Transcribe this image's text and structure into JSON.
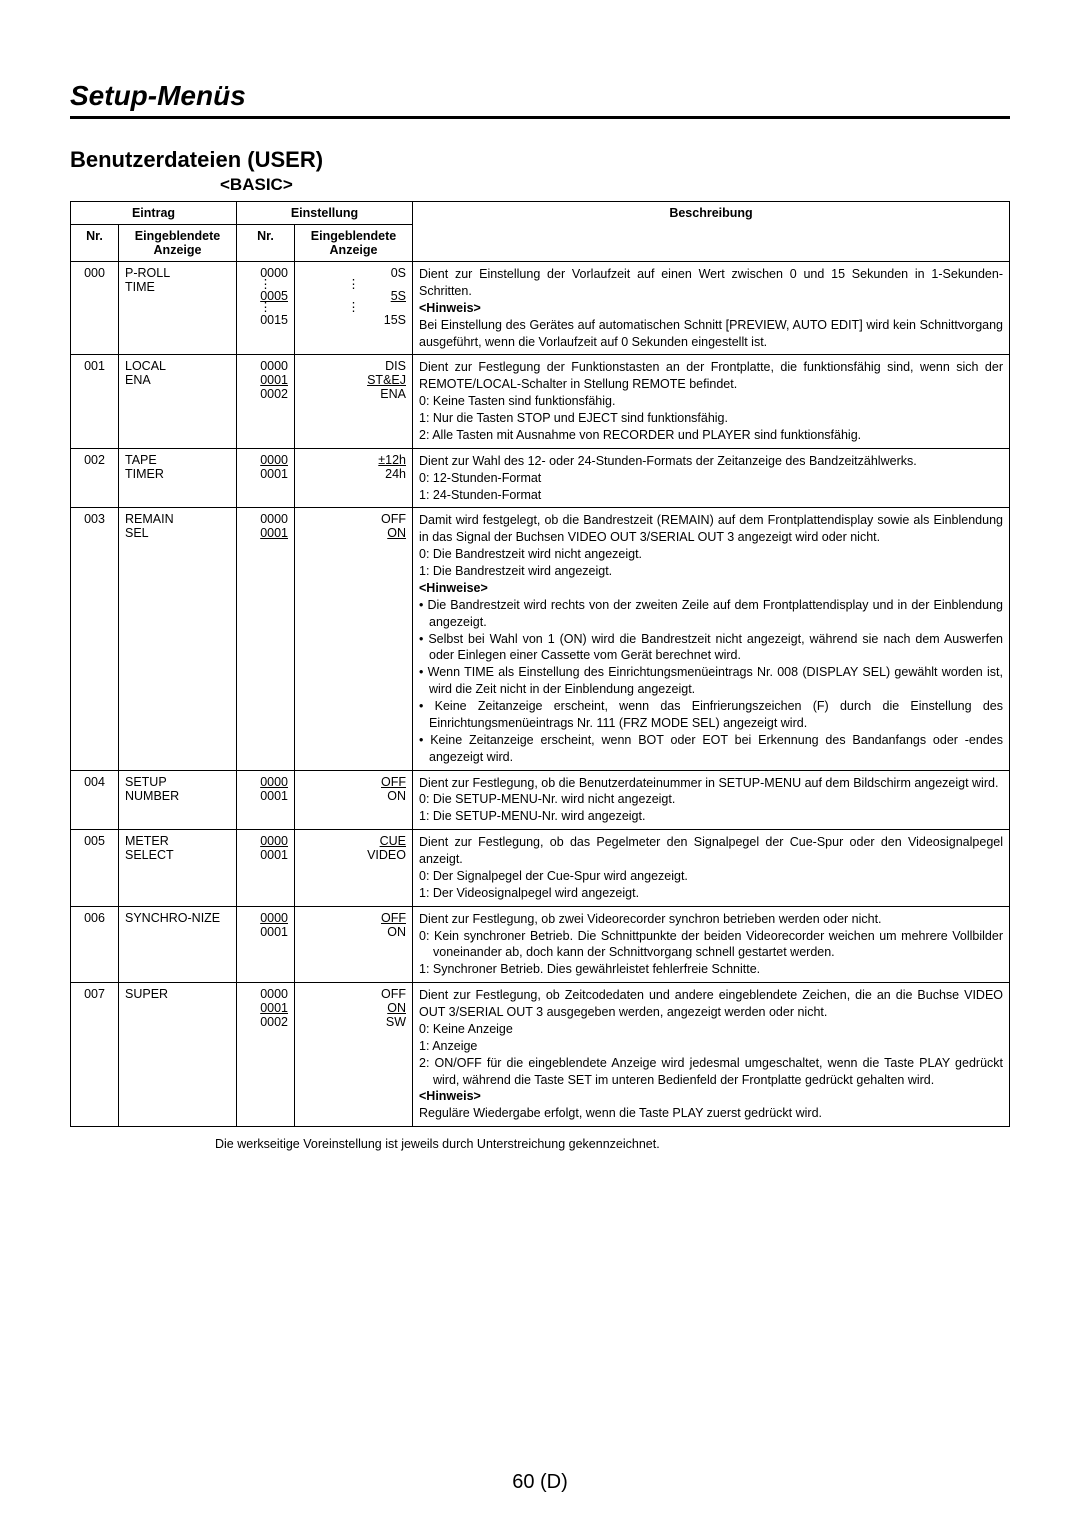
{
  "pageTitle": "Setup-Menüs",
  "sectionTitle": "Benutzerdateien (USER)",
  "subsectionTitle": "<BASIC>",
  "headers": {
    "entry": "Eintrag",
    "setting": "Einstellung",
    "nr": "Nr.",
    "display": "Eingeblendete Anzeige",
    "desc": "Beschreibung"
  },
  "rows": [
    {
      "nr": "000",
      "display1": "P-ROLL TIME",
      "nr2_html": "0000<br><span class='vdots'>⋮</span><span class='u'>0005</span><br><span class='vdots'>⋮</span>0015",
      "display2_html": "0S<br><span class='vdots'>⋮</span><span class='u'>5S</span><br><span class='vdots'>⋮</span>15S",
      "desc_html": "Dient zur Einstellung der Vorlaufzeit auf einen Wert zwischen 0 und 15 Sekunden in 1-Sekunden-Schritten.<br><span class='note-title'>&lt;Hinweis&gt;</span><br>Bei Einstellung des Gerätes auf automatischen Schnitt [PREVIEW, AUTO EDIT] wird kein Schnittvorgang ausgeführt, wenn die Vorlaufzeit auf 0 Sekunden eingestellt ist."
    },
    {
      "nr": "001",
      "display1": "LOCAL ENA",
      "nr2_html": "0000<br><span class='u'>0001</span><br>0002",
      "display2_html": "DIS<br><span class='u'>ST&amp;EJ</span><br>ENA",
      "desc_html": "Dient zur Festlegung der Funktionstasten an der Frontplatte, die funktionsfähig sind, wenn sich der REMOTE/LOCAL-Schalter in Stellung REMOTE befindet.<br><span class='indent'>0: Keine Tasten sind funktionsfähig.</span><span class='indent'>1: Nur die Tasten STOP und EJECT sind funktionsfähig.</span><span class='indent'>2: Alle Tasten mit Ausnahme von RECORDER und PLAYER sind funktionsfähig.</span>"
    },
    {
      "nr": "002",
      "display1": "TAPE TIMER",
      "nr2_html": "<span class='u'>0000</span><br>0001",
      "display2_html": "<span class='u'>±12h</span><br>24h",
      "desc_html": "Dient zur Wahl des 12- oder 24-Stunden-Formats der Zeitanzeige des Bandzeitzählwerks.<br><span class='indent'>0: 12-Stunden-Format</span><span class='indent'>1: 24-Stunden-Format</span>"
    },
    {
      "nr": "003",
      "display1": "REMAIN SEL",
      "nr2_html": "0000<br><span class='u'>0001</span>",
      "display2_html": "OFF<br><span class='u'>ON</span>",
      "desc_html": "Damit wird festgelegt, ob die Bandrestzeit (REMAIN) auf dem Frontplattendisplay sowie als Einblendung in das Signal der Buchsen VIDEO OUT 3/SERIAL OUT 3 angezeigt wird oder nicht.<br><span class='indent'>0: Die Bandrestzeit wird nicht angezeigt.</span><span class='indent'>1: Die Bandrestzeit wird angezeigt.</span><span class='note-title'>&lt;Hinweise&gt;</span><br><span class='bullet'>• Die Bandrestzeit wird rechts von der zweiten Zeile auf dem Frontplattendisplay und in der Einblendung angezeigt.</span><span class='bullet'>• Selbst bei Wahl von 1 (ON) wird die Bandrestzeit nicht angezeigt, während sie nach dem Auswerfen oder Einlegen einer Cassette vom Gerät berechnet wird.</span><span class='bullet'>• Wenn TIME als Einstellung des Einrichtungsmenüeintrags Nr. 008 (DISPLAY SEL) gewählt worden ist, wird die Zeit nicht in der Einblendung angezeigt.</span><span class='bullet'>• Keine Zeitanzeige erscheint, wenn das Einfrierungszeichen (F) durch die Einstellung des Einrichtungsmenüeintrags Nr. 111 (FRZ MODE SEL) angezeigt wird.</span><span class='bullet'>• Keine Zeitanzeige erscheint, wenn BOT oder EOT bei Erkennung des Bandanfangs oder -endes angezeigt wird.</span>"
    },
    {
      "nr": "004",
      "display1": "SETUP NUMBER",
      "nr2_html": "<span class='u'>0000</span><br>0001",
      "display2_html": "<span class='u'>OFF</span><br>ON",
      "desc_html": "Dient zur Festlegung, ob die Benutzerdateinummer in SETUP-MENU auf dem Bildschirm angezeigt wird.<br><span class='indent'>0: Die SETUP-MENU-Nr. wird nicht angezeigt.</span><span class='indent'>1: Die SETUP-MENU-Nr. wird angezeigt.</span>"
    },
    {
      "nr": "005",
      "display1": "METER SELECT",
      "nr2_html": "<span class='u'>0000</span><br>0001",
      "display2_html": "<span class='u'>CUE</span><br>VIDEO",
      "desc_html": "Dient zur Festlegung, ob das Pegelmeter den Signalpegel der Cue-Spur oder den Videosignalpegel anzeigt.<br><span class='indent'>0: Der Signalpegel der Cue-Spur wird angezeigt.</span><span class='indent'>1: Der Videosignalpegel wird angezeigt.</span>"
    },
    {
      "nr": "006",
      "display1": "SYNCHRO-NIZE",
      "nr2_html": "<span class='u'>0000</span><br>0001",
      "display2_html": "<span class='u'>OFF</span><br>ON",
      "desc_html": "Dient zur Festlegung, ob zwei Videorecorder synchron betrieben werden oder nicht.<br><span class='indent'>0: Kein synchroner Betrieb. Die Schnittpunkte der beiden Videorecorder weichen um mehrere Vollbilder voneinander ab, doch kann der Schnittvorgang schnell gestartet werden.</span><span class='indent'>1: Synchroner Betrieb. Dies gewährleistet fehlerfreie Schnitte.</span>"
    },
    {
      "nr": "007",
      "display1": "SUPER",
      "nr2_html": "0000<br><span class='u'>0001</span><br>0002",
      "display2_html": "OFF<br><span class='u'>ON</span><br>SW",
      "desc_html": "Dient zur Festlegung, ob Zeitcodedaten und andere eingeblendete Zeichen, die an die Buchse VIDEO OUT 3/SERIAL OUT 3 ausgegeben werden, angezeigt werden oder nicht.<br><span class='indent'>0: Keine Anzeige</span><span class='indent'>1: Anzeige</span><span class='indent'>2: ON/OFF für die eingeblendete Anzeige wird jedesmal umgeschaltet, wenn die Taste PLAY gedrückt wird, während die Taste SET im unteren Bedienfeld der Frontplatte gedrückt gehalten wird.</span><span class='note-title'>&lt;Hinweis&gt;</span><br>Reguläre Wiedergabe erfolgt, wenn die Taste PLAY zuerst gedrückt wird."
    }
  ],
  "footnote": "Die werkseitige Voreinstellung ist jeweils durch Unterstreichung gekennzeichnet.",
  "pageNumber": "60 (D)"
}
